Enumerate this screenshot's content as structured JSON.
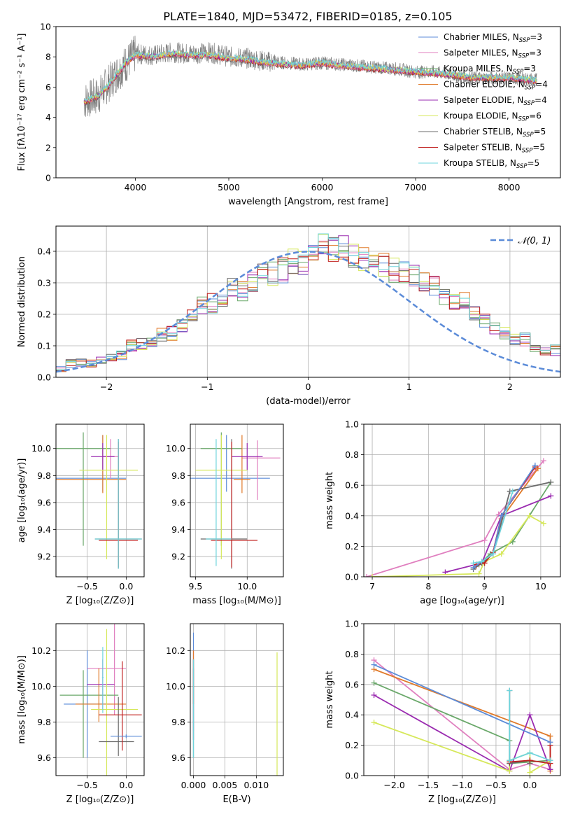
{
  "colors": [
    "#5b8bd8",
    "#e07fbf",
    "#6aa86a",
    "#e07a2a",
    "#9a2bb0",
    "#d6e85a",
    "#6b6b6b",
    "#c0201f",
    "#6fd4dc"
  ],
  "chart_data": [
    {
      "id": "spectrum",
      "type": "line",
      "title": "PLATE=1840, MJD=53472, FIBERID=0185, z=0.105",
      "xlabel": "wavelength [Angstrom, rest frame]",
      "ylabel": "Flux [fλ10⁻¹⁷ erg cm⁻² s⁻¹ A⁻¹]",
      "xlim": [
        3150,
        8550
      ],
      "ylim": [
        0,
        10
      ],
      "xticks": [
        4000,
        5000,
        6000,
        7000,
        8000
      ],
      "yticks": [
        0,
        2,
        4,
        6,
        8,
        10
      ],
      "grid": false,
      "legend_position": "right",
      "data_color": "#808080",
      "model_color": "#6fd4dc",
      "data": {
        "x": [
          3450,
          3600,
          3800,
          4000,
          4200,
          4400,
          4600,
          4800,
          5000,
          5200,
          5400,
          5600,
          5800,
          6000,
          6200,
          6400,
          6600,
          6800,
          7000,
          7200,
          7400,
          7600,
          7800,
          8000,
          8300
        ],
        "y": [
          5.1,
          5.4,
          6.9,
          8.2,
          8.1,
          8.3,
          8.2,
          8.3,
          8.0,
          7.9,
          7.7,
          7.6,
          7.5,
          7.6,
          7.5,
          7.4,
          7.3,
          7.2,
          7.0,
          7.0,
          6.8,
          6.6,
          6.6,
          6.6,
          6.5
        ]
      },
      "model": {
        "x": [
          3450,
          3600,
          3700,
          3800,
          3900,
          4000,
          4200,
          4400,
          4600,
          4800,
          5000,
          5200,
          5400,
          5600,
          5800,
          6000,
          6200,
          6400,
          6600,
          6800,
          7000,
          7200,
          7400,
          7600,
          7800,
          8000,
          8300
        ],
        "y": [
          5.0,
          5.4,
          6.0,
          6.8,
          7.6,
          8.1,
          8.0,
          8.2,
          8.1,
          8.1,
          7.9,
          7.8,
          7.6,
          7.5,
          7.4,
          7.6,
          7.4,
          7.3,
          7.2,
          7.1,
          7.0,
          6.9,
          6.8,
          6.6,
          6.6,
          6.6,
          6.4
        ]
      },
      "legend": [
        {
          "label": "Chabrier MILES, N",
          "sub": "SSP",
          "suffix": "=3"
        },
        {
          "label": "Salpeter MILES, N",
          "sub": "SSP",
          "suffix": "=3"
        },
        {
          "label": "Kroupa MILES, N",
          "sub": "SSP",
          "suffix": "=3"
        },
        {
          "label": "Chabrier ELODIE, N",
          "sub": "SSP",
          "suffix": "=4"
        },
        {
          "label": "Salpeter ELODIE, N",
          "sub": "SSP",
          "suffix": "=4"
        },
        {
          "label": "Kroupa ELODIE, N",
          "sub": "SSP",
          "suffix": "=6"
        },
        {
          "label": "Chabrier STELIB, N",
          "sub": "SSP",
          "suffix": "=5"
        },
        {
          "label": "Salpeter STELIB, N",
          "sub": "SSP",
          "suffix": "=5"
        },
        {
          "label": "Kroupa STELIB, N",
          "sub": "SSP",
          "suffix": "=5"
        }
      ]
    },
    {
      "id": "residuals",
      "type": "line",
      "xlabel": "(data-model)/error",
      "ylabel": "Normed distribution",
      "xlim": [
        -2.5,
        2.5
      ],
      "ylim": [
        0,
        0.48
      ],
      "xticks": [
        -2,
        -1,
        0,
        1,
        2
      ],
      "xtick_labels": [
        "−2",
        "−1",
        "0",
        "1",
        "2"
      ],
      "yticks": [
        0.0,
        0.1,
        0.2,
        0.3,
        0.4
      ],
      "ytick_labels": [
        "0.0",
        "0.1",
        "0.2",
        "0.3",
        "0.4"
      ],
      "grid": true,
      "legend_position": "top-right",
      "curve_label": "𝒩(0, 1)",
      "bin_width": 0.1,
      "bin_start": -2.5,
      "base_hist": [
        0.028,
        0.045,
        0.045,
        0.045,
        0.05,
        0.058,
        0.07,
        0.1,
        0.105,
        0.11,
        0.135,
        0.14,
        0.16,
        0.195,
        0.225,
        0.235,
        0.25,
        0.285,
        0.27,
        0.3,
        0.325,
        0.33,
        0.34,
        0.37,
        0.36,
        0.4,
        0.41,
        0.405,
        0.41,
        0.39,
        0.38,
        0.37,
        0.36,
        0.34,
        0.33,
        0.32,
        0.31,
        0.285,
        0.255,
        0.245,
        0.24,
        0.21,
        0.185,
        0.155,
        0.145,
        0.12,
        0.12,
        0.095,
        0.085,
        0.085,
        0.07,
        0.06,
        0.05,
        0.045,
        0.045,
        0.04,
        0.035,
        0.03,
        0.035,
        0.03,
        0.025,
        0.02,
        0.015,
        0.015,
        0.02
      ]
    },
    {
      "id": "z-age",
      "type": "scatter",
      "xlabel": "Z [log₁₀(Z/Z⊙)]",
      "ylabel": "age  [log₁₀(age/yr)]",
      "xlim": [
        -0.9,
        0.23
      ],
      "ylim": [
        9.05,
        10.18
      ],
      "xticks": [
        -0.5,
        0.0
      ],
      "xtick_labels": [
        "−0.5",
        "0.0"
      ],
      "yticks": [
        9.2,
        9.4,
        9.6,
        9.8,
        10.0
      ],
      "ytick_labels": [
        "9.2",
        "9.4",
        "9.6",
        "9.8",
        "10.0"
      ],
      "grid": true,
      "points": [
        {
          "x": -0.3,
          "y": 9.78,
          "xerr": [
            0.6,
            0.3
          ],
          "yerr": [
            0.1,
            0.32
          ]
        },
        {
          "x": -0.2,
          "y": 9.94,
          "xerr": [
            0.1,
            0.1
          ],
          "yerr": [
            0.16,
            0.13
          ]
        },
        {
          "x": -0.55,
          "y": 10.0,
          "xerr": [
            0.35,
            0.35
          ],
          "yerr": [
            0.72,
            0.12
          ]
        },
        {
          "x": -0.3,
          "y": 9.77,
          "xerr": [
            0.6,
            0.3
          ],
          "yerr": [
            0.1,
            0.33
          ]
        },
        {
          "x": -0.3,
          "y": 9.94,
          "xerr": [
            0.15,
            0.15
          ],
          "yerr": [
            0.1,
            0.1
          ]
        },
        {
          "x": -0.25,
          "y": 9.84,
          "xerr": [
            0.35,
            0.4
          ],
          "yerr": [
            0.66,
            0.26
          ]
        },
        {
          "x": -0.1,
          "y": 9.33,
          "xerr": [
            0.3,
            0.3
          ],
          "yerr": [
            0.22,
            0.74
          ]
        },
        {
          "x": -0.1,
          "y": 9.32,
          "xerr": [
            0.25,
            0.25
          ],
          "yerr": [
            0.2,
            0.73
          ]
        },
        {
          "x": -0.1,
          "y": 9.33,
          "xerr": [
            0.3,
            0.3
          ],
          "yerr": [
            0.22,
            0.74
          ]
        }
      ]
    },
    {
      "id": "mass-age",
      "type": "scatter",
      "xlabel": "mass [log₁₀(M/M⊙)]",
      "xlim": [
        9.45,
        10.35
      ],
      "ylim": [
        9.05,
        10.18
      ],
      "xticks": [
        9.5,
        10.0
      ],
      "xtick_labels": [
        "9.5",
        "10.0"
      ],
      "yticks": [
        9.2,
        9.4,
        9.6,
        9.8,
        10.0
      ],
      "ytick_labels": [
        "9.2",
        "9.4",
        "9.6",
        "9.8",
        "10.0"
      ],
      "grid": true,
      "points": [
        {
          "x": 9.8,
          "y": 9.78,
          "xerr": [
            0.5,
            0.42
          ],
          "yerr": [
            0.1,
            0.32
          ]
        },
        {
          "x": 10.1,
          "y": 9.93,
          "xerr": [
            0.15,
            0.22
          ],
          "yerr": [
            0.31,
            0.13
          ]
        },
        {
          "x": 9.75,
          "y": 10.0,
          "xerr": [
            0.2,
            0.2
          ],
          "yerr": [
            0.72,
            0.12
          ]
        },
        {
          "x": 9.95,
          "y": 9.77,
          "xerr": [
            0.08,
            0.08
          ],
          "yerr": [
            0.1,
            0.33
          ]
        },
        {
          "x": 10.0,
          "y": 9.94,
          "xerr": [
            0.15,
            0.15
          ],
          "yerr": [
            0.1,
            0.1
          ]
        },
        {
          "x": 9.75,
          "y": 9.84,
          "xerr": [
            0.25,
            0.25
          ],
          "yerr": [
            0.66,
            0.26
          ]
        },
        {
          "x": 9.85,
          "y": 9.33,
          "xerr": [
            0.3,
            0.15
          ],
          "yerr": [
            0.22,
            0.74
          ]
        },
        {
          "x": 9.85,
          "y": 9.32,
          "xerr": [
            0.2,
            0.25
          ],
          "yerr": [
            0.2,
            0.73
          ]
        },
        {
          "x": 9.7,
          "y": 9.33,
          "xerr": [
            0.1,
            0.15
          ],
          "yerr": [
            0.2,
            0.74
          ]
        }
      ]
    },
    {
      "id": "age-massweight",
      "type": "line",
      "xlabel": "age  [log₁₀(age/yr)]",
      "ylabel": "mass weight",
      "xlim": [
        6.85,
        10.35
      ],
      "ylim": [
        0,
        1
      ],
      "xticks": [
        7,
        8,
        9,
        10
      ],
      "xtick_labels": [
        "7",
        "8",
        "9",
        "10"
      ],
      "yticks": [
        0.0,
        0.2,
        0.4,
        0.6,
        0.8,
        1.0
      ],
      "ytick_labels": [
        "0.0",
        "0.2",
        "0.4",
        "0.6",
        "0.8",
        "1.0"
      ],
      "grid": true,
      "series": [
        {
          "x": [
            8.8,
            9.15,
            9.3,
            9.9
          ],
          "y": [
            0.06,
            0.15,
            0.4,
            0.73
          ]
        },
        {
          "x": [
            6.9,
            9.0,
            9.25,
            10.05
          ],
          "y": [
            0.0,
            0.24,
            0.41,
            0.76
          ]
        },
        {
          "x": [
            8.9,
            9.1,
            9.5,
            10.18
          ],
          "y": [
            0.08,
            0.15,
            0.23,
            0.62
          ]
        },
        {
          "x": [
            8.85,
            9.15,
            9.3,
            9.95
          ],
          "y": [
            0.07,
            0.15,
            0.38,
            0.71
          ]
        },
        {
          "x": [
            8.3,
            8.95,
            9.3,
            10.18
          ],
          "y": [
            0.03,
            0.09,
            0.4,
            0.53
          ]
        },
        {
          "x": [
            7.0,
            8.9,
            9.0,
            9.3,
            9.8,
            10.05
          ],
          "y": [
            0.0,
            0.02,
            0.1,
            0.15,
            0.4,
            0.35
          ]
        },
        {
          "x": [
            8.8,
            8.95,
            9.15,
            9.45,
            10.18
          ],
          "y": [
            0.05,
            0.09,
            0.15,
            0.56,
            0.62
          ]
        },
        {
          "x": [
            8.85,
            9.0,
            9.15,
            9.3,
            9.9
          ],
          "y": [
            0.08,
            0.09,
            0.16,
            0.4,
            0.72
          ]
        },
        {
          "x": [
            8.8,
            8.95,
            9.15,
            9.5
          ],
          "y": [
            0.09,
            0.1,
            0.15,
            0.56
          ]
        }
      ]
    },
    {
      "id": "z-mass",
      "type": "scatter",
      "xlabel": "Z [log₁₀(Z/Z⊙)]",
      "ylabel": "mass [log₁₀(M/M⊙)]",
      "xlim": [
        -0.9,
        0.23
      ],
      "ylim": [
        9.5,
        10.35
      ],
      "xticks": [
        -0.5,
        0.0
      ],
      "xtick_labels": [
        "−0.5",
        "0.0"
      ],
      "yticks": [
        9.6,
        9.8,
        10.0,
        10.2
      ],
      "ytick_labels": [
        "9.6",
        "9.8",
        "10.0",
        "10.2"
      ],
      "grid": true,
      "points": [
        {
          "x": -0.5,
          "y": 9.9,
          "xerr": [
            0.3,
            0.25
          ],
          "yerr": [
            0.3,
            0.3
          ]
        },
        {
          "x": -0.15,
          "y": 10.1,
          "xerr": [
            0.35,
            0.15
          ],
          "yerr": [
            0.26,
            0.25
          ]
        },
        {
          "x": -0.55,
          "y": 9.95,
          "xerr": [
            0.3,
            0.45
          ],
          "yerr": [
            0.35,
            0.14
          ]
        },
        {
          "x": -0.35,
          "y": 9.9,
          "xerr": [
            0.3,
            0.35
          ],
          "yerr": [
            0.1,
            0.2
          ]
        },
        {
          "x": -0.3,
          "y": 10.01,
          "xerr": [
            0.2,
            0.15
          ],
          "yerr": [
            0.14,
            0.14
          ]
        },
        {
          "x": -0.25,
          "y": 9.87,
          "xerr": [
            0.2,
            0.4
          ],
          "yerr": [
            0.37,
            0.45
          ]
        },
        {
          "x": -0.1,
          "y": 9.69,
          "xerr": [
            0.25,
            0.2
          ],
          "yerr": [
            0.08,
            0.25
          ]
        },
        {
          "x": -0.05,
          "y": 9.84,
          "xerr": [
            0.3,
            0.25
          ],
          "yerr": [
            0.2,
            0.3
          ]
        },
        {
          "x": -0.3,
          "y": 10.05,
          "xerr": [
            0.01,
            0.01
          ],
          "yerr": [
            0.2,
            0.17
          ]
        },
        {
          "x": 0.0,
          "y": 9.72,
          "xerr": [
            0.2,
            0.2
          ],
          "yerr": [
            0.01,
            0.01
          ]
        }
      ]
    },
    {
      "id": "ebv-mass",
      "type": "scatter",
      "xlabel": "E(B-V)",
      "xlim": [
        -0.0005,
        0.0143
      ],
      "ylim": [
        9.5,
        10.35
      ],
      "xticks": [
        0.0,
        0.005,
        0.01
      ],
      "xtick_labels": [
        "0.000",
        "0.005",
        "0.010"
      ],
      "yticks": [
        9.6,
        9.8,
        10.0,
        10.2
      ],
      "ytick_labels": [
        "9.6",
        "9.8",
        "10.0",
        "10.2"
      ],
      "grid": true,
      "points": [
        {
          "x": 0.0,
          "y": 10.0,
          "yerr": [
            0.4,
            0.3
          ]
        },
        {
          "x": 0.0,
          "y": 10.15,
          "yerr": [
            0.4,
            0.05
          ]
        },
        {
          "x": 0.0,
          "y": 9.9,
          "yerr": [
            0.3,
            0.2
          ]
        },
        {
          "x": 0.0,
          "y": 10.1,
          "yerr": [
            0.2,
            0.1
          ]
        },
        {
          "x": 0.0,
          "y": 9.95,
          "yerr": [
            0.25,
            0.15
          ]
        },
        {
          "x": 0.0133,
          "y": 9.85,
          "yerr": [
            0.35,
            0.34
          ]
        },
        {
          "x": 0.0,
          "y": 10.05,
          "yerr": [
            0.35,
            0.1
          ]
        },
        {
          "x": 0.0,
          "y": 10.1,
          "yerr": [
            0.2,
            0.05
          ]
        },
        {
          "x": 0.0,
          "y": 9.85,
          "yerr": [
            0.25,
            0.3
          ]
        }
      ]
    },
    {
      "id": "z-massweight",
      "type": "line",
      "xlabel": "Z [log₁₀(Z/Z⊙)]",
      "ylabel": "mass weight",
      "xlim": [
        -2.45,
        0.45
      ],
      "ylim": [
        0,
        1
      ],
      "xticks": [
        -2.0,
        -1.5,
        -1.0,
        -0.5,
        0.0
      ],
      "xtick_labels": [
        "−2.0",
        "−1.5",
        "−1.0",
        "−0.5",
        "0.0"
      ],
      "yticks": [
        0.0,
        0.2,
        0.4,
        0.6,
        0.8,
        1.0
      ],
      "ytick_labels": [
        "0.0",
        "0.2",
        "0.4",
        "0.6",
        "0.8",
        "1.0"
      ],
      "grid": true,
      "series": [
        {
          "x": [
            -2.3,
            0.3
          ],
          "y": [
            0.73,
            0.22
          ]
        },
        {
          "x": [
            -2.3,
            -0.3,
            0.0,
            0.3
          ],
          "y": [
            0.76,
            0.04,
            0.08,
            0.04
          ]
        },
        {
          "x": [
            -2.3,
            -0.3,
            -0.3,
            0.3
          ],
          "y": [
            0.61,
            0.23,
            0.08,
            0.1
          ]
        },
        {
          "x": [
            -2.3,
            0.3,
            0.3
          ],
          "y": [
            0.7,
            0.26,
            0.03
          ]
        },
        {
          "x": [
            -2.3,
            -0.3,
            0.0,
            0.3
          ],
          "y": [
            0.53,
            0.03,
            0.4,
            0.04
          ]
        },
        {
          "x": [
            -2.3,
            -0.3,
            -0.3,
            0.0,
            0.0,
            0.3
          ],
          "y": [
            0.35,
            0.03,
            0.1,
            0.15,
            0.02,
            0.1
          ]
        },
        {
          "x": [
            -0.3,
            -0.3,
            0.0,
            0.0
          ],
          "y": [
            0.56,
            0.08,
            0.1,
            0.08
          ]
        },
        {
          "x": [
            -0.3,
            -0.3,
            0.0,
            0.3,
            0.3
          ],
          "y": [
            0.09,
            0.09,
            0.1,
            0.08,
            0.2
          ]
        },
        {
          "x": [
            -0.3,
            -0.3,
            0.0,
            0.3
          ],
          "y": [
            0.56,
            0.1,
            0.15,
            0.1
          ]
        }
      ]
    }
  ]
}
